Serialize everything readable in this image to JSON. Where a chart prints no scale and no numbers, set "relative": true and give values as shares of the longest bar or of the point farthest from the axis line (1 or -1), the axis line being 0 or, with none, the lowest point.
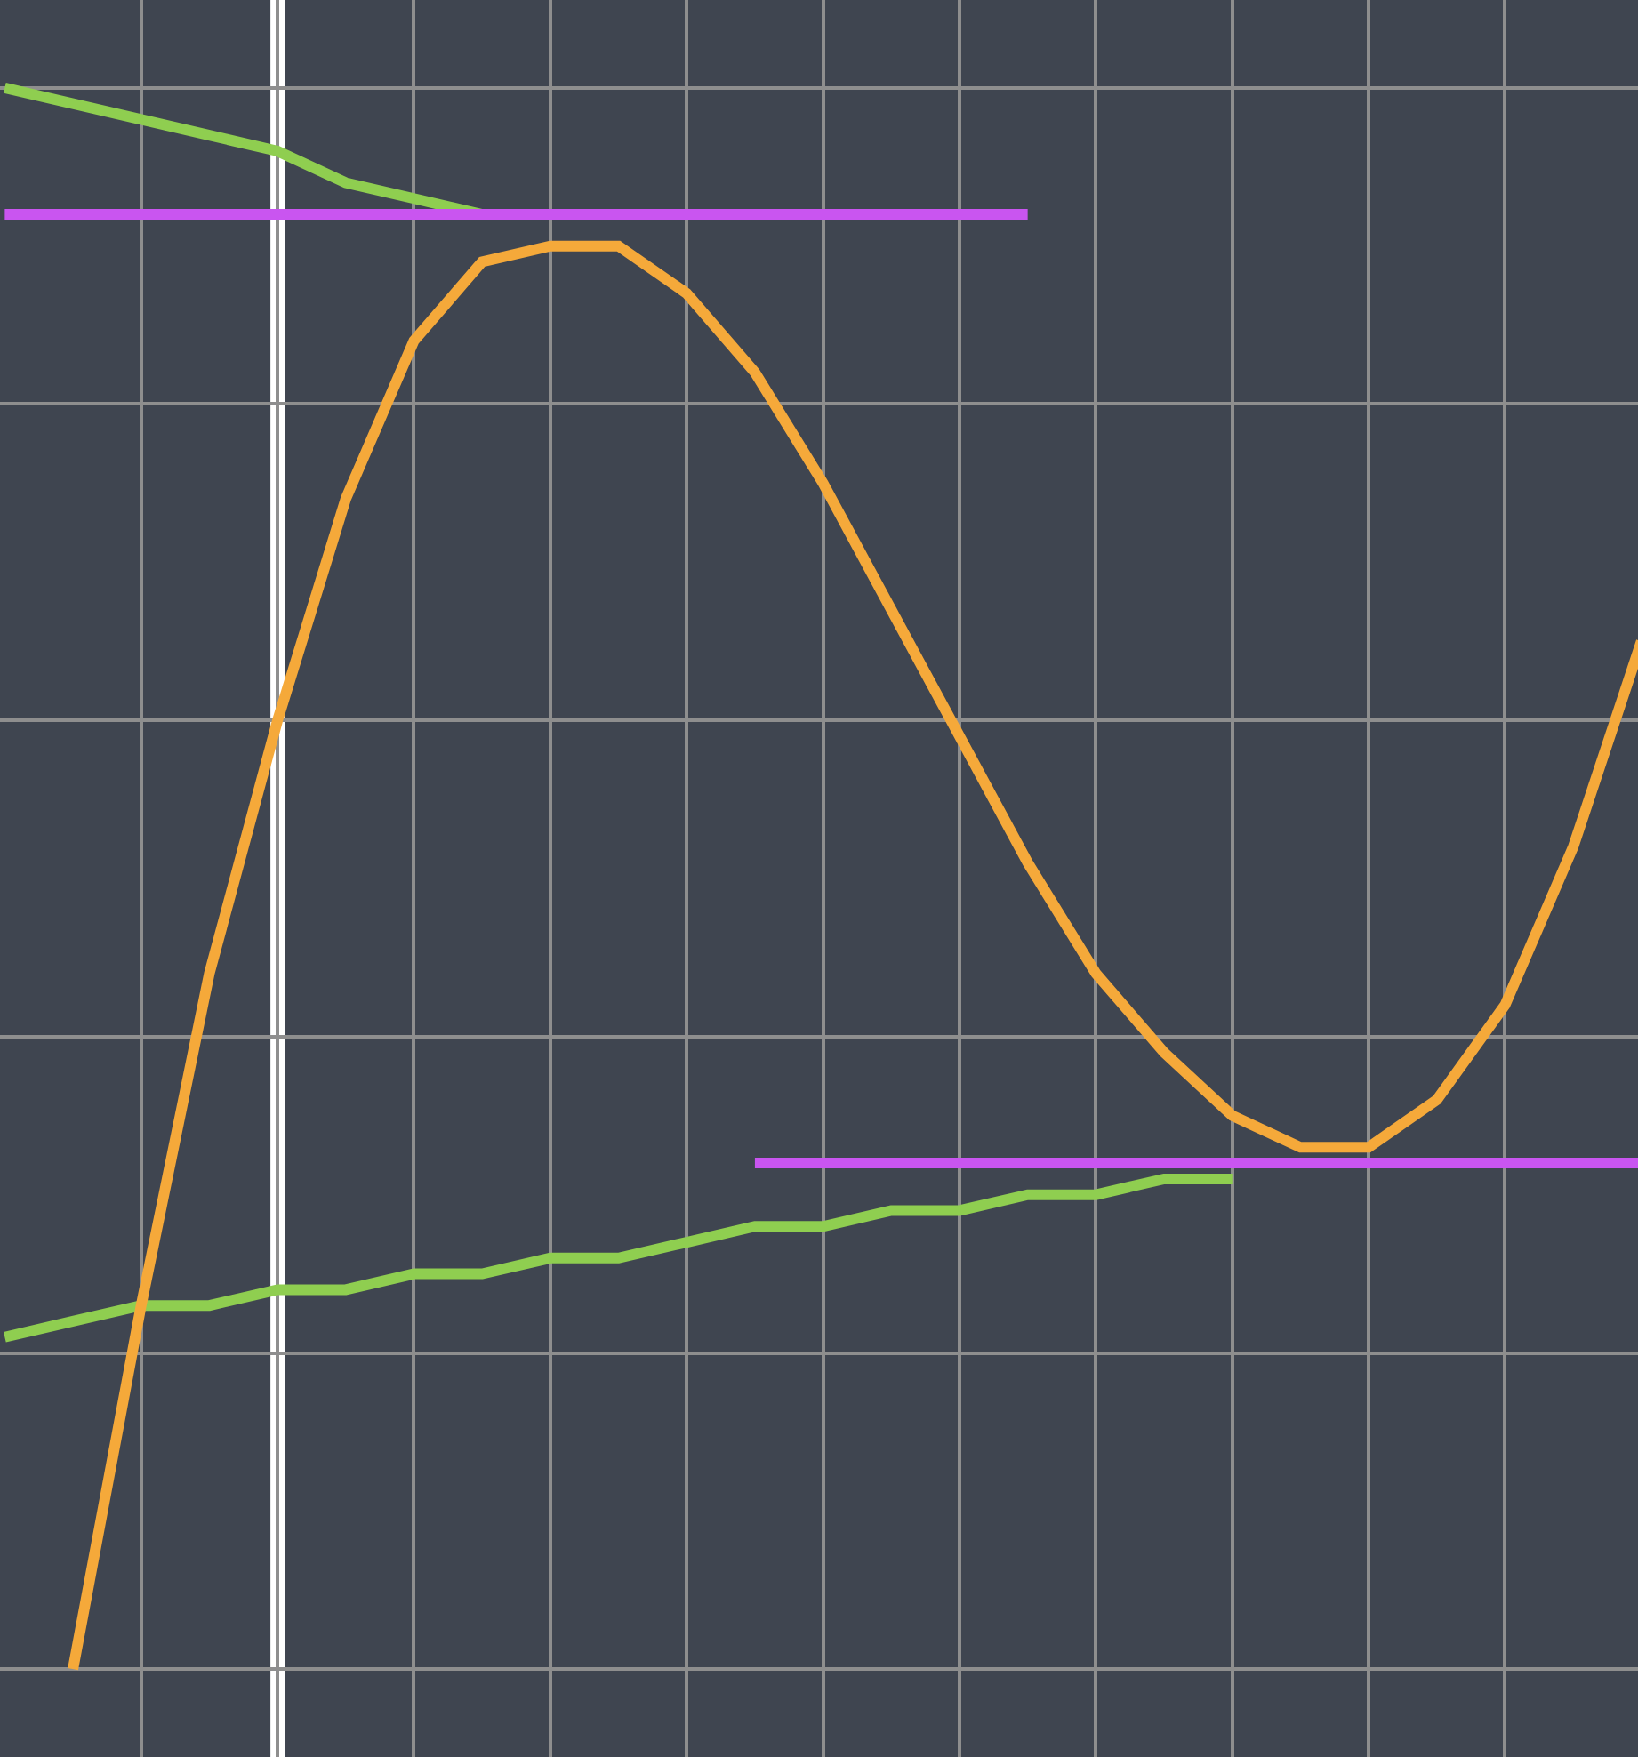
{
  "chart_data": {
    "type": "line",
    "relative": true,
    "grid": true,
    "categories": [
      null,
      null,
      null,
      null,
      null,
      null,
      null,
      null,
      null,
      null,
      null,
      null,
      null,
      null,
      null,
      null,
      null,
      null,
      null,
      null,
      null,
      null,
      null,
      null,
      null
    ],
    "series": [
      {
        "color": "#8fce50",
        "values": [
          1.0,
          0.99,
          0.98,
          0.97,
          0.96,
          0.94,
          0.93,
          0.92,
          null,
          null,
          null,
          null,
          null,
          null,
          null,
          null,
          null,
          null,
          null,
          null,
          null,
          null,
          null,
          null,
          null
        ]
      },
      {
        "color": "#8fce50",
        "values": [
          0.21,
          0.22,
          0.23,
          0.23,
          0.24,
          0.24,
          0.25,
          0.25,
          0.26,
          0.26,
          0.27,
          0.28,
          0.28,
          0.29,
          0.29,
          0.3,
          0.3,
          0.31,
          0.31,
          null,
          null,
          null,
          null,
          null,
          null
        ]
      },
      {
        "color": "#c955f0",
        "values": [
          0.92,
          0.92,
          0.92,
          0.92,
          0.92,
          0.92,
          0.92,
          0.92,
          0.92,
          0.92,
          0.92,
          0.92,
          0.92,
          0.92,
          0.92,
          0.92,
          null,
          null,
          null,
          null,
          null,
          null,
          null,
          null,
          null
        ]
      },
      {
        "color": "#c955f0",
        "values": [
          null,
          null,
          null,
          null,
          null,
          null,
          null,
          null,
          null,
          null,
          null,
          0.32,
          0.32,
          0.32,
          0.32,
          0.32,
          0.32,
          0.32,
          0.32,
          0.32,
          0.32,
          0.32,
          0.32,
          0.32,
          0.32
        ]
      },
      {
        "color": "#f5a93a",
        "values": [
          null,
          0.0,
          0.23,
          0.44,
          0.6,
          0.74,
          0.84,
          0.89,
          0.9,
          0.9,
          0.87,
          0.82,
          0.75,
          0.67,
          0.59,
          0.51,
          0.44,
          0.39,
          0.35,
          0.33,
          0.33,
          0.36,
          0.42,
          0.52,
          0.65
        ]
      }
    ]
  }
}
